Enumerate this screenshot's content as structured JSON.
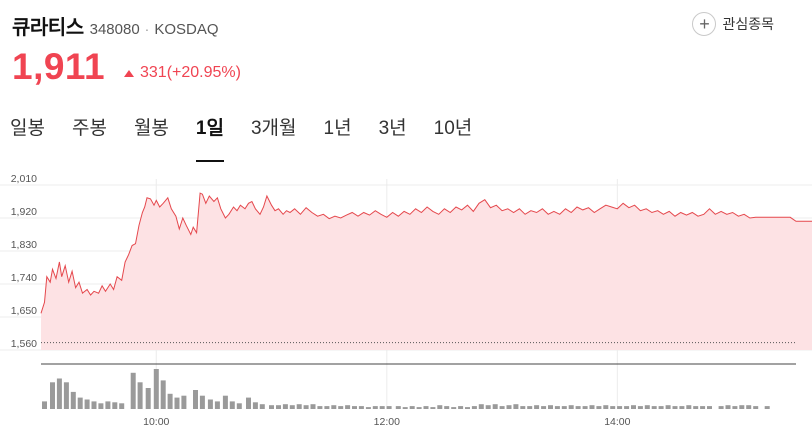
{
  "stock": {
    "name": "큐라티스",
    "code": "348080",
    "separator": "·",
    "market": "KOSDAQ",
    "price": "1,911",
    "change": "331(+20.95%)",
    "change_direction": "up",
    "color_up": "#f04452"
  },
  "favorite": {
    "label": "관심종목",
    "icon": "plus-icon"
  },
  "tabs": [
    {
      "label": "일봉",
      "active": false
    },
    {
      "label": "주봉",
      "active": false
    },
    {
      "label": "월봉",
      "active": false
    },
    {
      "label": "1일",
      "active": true
    },
    {
      "label": "3개월",
      "active": false
    },
    {
      "label": "1년",
      "active": false
    },
    {
      "label": "3년",
      "active": false
    },
    {
      "label": "10년",
      "active": false
    }
  ],
  "chart_data": {
    "type": "area",
    "y_ticks": [
      "2,010",
      "1,920",
      "1,830",
      "1,740",
      "1,650",
      "1,560"
    ],
    "ylim": [
      1560,
      2010
    ],
    "x_ticks": [
      "10:00",
      "12:00",
      "14:00"
    ],
    "reference_price": 1580,
    "grid": true,
    "line_color": "#e5484d",
    "fill_color": "#fde2e4",
    "volume_color": "#9a9a9a",
    "price_series": [
      [
        9.0,
        1660
      ],
      [
        9.03,
        1690
      ],
      [
        9.05,
        1760
      ],
      [
        9.08,
        1745
      ],
      [
        9.1,
        1780
      ],
      [
        9.13,
        1755
      ],
      [
        9.16,
        1800
      ],
      [
        9.18,
        1760
      ],
      [
        9.21,
        1790
      ],
      [
        9.24,
        1745
      ],
      [
        9.27,
        1775
      ],
      [
        9.3,
        1730
      ],
      [
        9.33,
        1745
      ],
      [
        9.36,
        1715
      ],
      [
        9.4,
        1725
      ],
      [
        9.43,
        1710
      ],
      [
        9.46,
        1720
      ],
      [
        9.5,
        1715
      ],
      [
        9.53,
        1735
      ],
      [
        9.56,
        1720
      ],
      [
        9.6,
        1740
      ],
      [
        9.63,
        1725
      ],
      [
        9.66,
        1760
      ],
      [
        9.7,
        1750
      ],
      [
        9.73,
        1800
      ],
      [
        9.76,
        1820
      ],
      [
        9.79,
        1845
      ],
      [
        9.82,
        1850
      ],
      [
        9.85,
        1900
      ],
      [
        9.88,
        1935
      ],
      [
        9.9,
        1950
      ],
      [
        9.92,
        1975
      ],
      [
        9.95,
        1972
      ],
      [
        9.98,
        1955
      ],
      [
        10.0,
        1968
      ],
      [
        10.03,
        1950
      ],
      [
        10.06,
        1960
      ],
      [
        10.1,
        1975
      ],
      [
        10.13,
        1945
      ],
      [
        10.17,
        1925
      ],
      [
        10.2,
        1890
      ],
      [
        10.23,
        1920
      ],
      [
        10.26,
        1900
      ],
      [
        10.3,
        1875
      ],
      [
        10.32,
        1895
      ],
      [
        10.35,
        1880
      ],
      [
        10.38,
        1988
      ],
      [
        10.4,
        1985
      ],
      [
        10.43,
        1960
      ],
      [
        10.46,
        1980
      ],
      [
        10.5,
        1965
      ],
      [
        10.53,
        1975
      ],
      [
        10.56,
        1945
      ],
      [
        10.6,
        1920
      ],
      [
        10.63,
        1930
      ],
      [
        10.67,
        1950
      ],
      [
        10.7,
        1940
      ],
      [
        10.73,
        1955
      ],
      [
        10.77,
        1945
      ],
      [
        10.8,
        1960
      ],
      [
        10.83,
        1965
      ],
      [
        10.86,
        1945
      ],
      [
        10.9,
        1930
      ],
      [
        10.93,
        1950
      ],
      [
        10.96,
        1980
      ],
      [
        11.0,
        1955
      ],
      [
        11.03,
        1940
      ],
      [
        11.06,
        1945
      ],
      [
        11.1,
        1930
      ],
      [
        11.13,
        1940
      ],
      [
        11.16,
        1935
      ],
      [
        11.2,
        1945
      ],
      [
        11.25,
        1930
      ],
      [
        11.3,
        1948
      ],
      [
        11.35,
        1935
      ],
      [
        11.4,
        1925
      ],
      [
        11.45,
        1930
      ],
      [
        11.5,
        1918
      ],
      [
        11.55,
        1925
      ],
      [
        11.6,
        1920
      ],
      [
        11.65,
        1928
      ],
      [
        11.7,
        1935
      ],
      [
        11.75,
        1925
      ],
      [
        11.8,
        1935
      ],
      [
        11.85,
        1928
      ],
      [
        11.9,
        1940
      ],
      [
        11.95,
        1930
      ],
      [
        12.0,
        1922
      ],
      [
        12.05,
        1935
      ],
      [
        12.1,
        1925
      ],
      [
        12.15,
        1938
      ],
      [
        12.2,
        1930
      ],
      [
        12.25,
        1945
      ],
      [
        12.3,
        1935
      ],
      [
        12.35,
        1950
      ],
      [
        12.4,
        1938
      ],
      [
        12.45,
        1930
      ],
      [
        12.5,
        1945
      ],
      [
        12.55,
        1935
      ],
      [
        12.6,
        1950
      ],
      [
        12.65,
        1942
      ],
      [
        12.7,
        1955
      ],
      [
        12.75,
        1938
      ],
      [
        12.8,
        1960
      ],
      [
        12.85,
        1970
      ],
      [
        12.9,
        1948
      ],
      [
        12.95,
        1955
      ],
      [
        13.0,
        1940
      ],
      [
        13.05,
        1945
      ],
      [
        13.1,
        1935
      ],
      [
        13.15,
        1945
      ],
      [
        13.2,
        1930
      ],
      [
        13.25,
        1940
      ],
      [
        13.3,
        1935
      ],
      [
        13.35,
        1945
      ],
      [
        13.4,
        1930
      ],
      [
        13.45,
        1938
      ],
      [
        13.5,
        1930
      ],
      [
        13.55,
        1945
      ],
      [
        13.6,
        1935
      ],
      [
        13.65,
        1950
      ],
      [
        13.7,
        1942
      ],
      [
        13.75,
        1948
      ],
      [
        13.8,
        1935
      ],
      [
        13.85,
        1945
      ],
      [
        13.9,
        1955
      ],
      [
        13.95,
        1950
      ],
      [
        14.0,
        1945
      ],
      [
        14.05,
        1960
      ],
      [
        14.1,
        1948
      ],
      [
        14.15,
        1955
      ],
      [
        14.2,
        1940
      ],
      [
        14.25,
        1945
      ],
      [
        14.3,
        1935
      ],
      [
        14.35,
        1940
      ],
      [
        14.4,
        1930
      ],
      [
        14.45,
        1938
      ],
      [
        14.5,
        1925
      ],
      [
        14.55,
        1935
      ],
      [
        14.6,
        1928
      ],
      [
        14.65,
        1935
      ],
      [
        14.7,
        1925
      ],
      [
        14.75,
        1930
      ],
      [
        14.8,
        1945
      ],
      [
        14.85,
        1930
      ],
      [
        14.9,
        1938
      ],
      [
        14.95,
        1930
      ],
      [
        15.0,
        1935
      ],
      [
        15.05,
        1925
      ],
      [
        15.1,
        1930
      ],
      [
        15.15,
        1920
      ],
      [
        15.2,
        1922
      ],
      [
        15.5,
        1922
      ],
      [
        15.55,
        1911
      ],
      [
        15.9,
        1911
      ]
    ],
    "volume_series": [
      [
        9.03,
        8
      ],
      [
        9.1,
        28
      ],
      [
        9.16,
        32
      ],
      [
        9.22,
        28
      ],
      [
        9.28,
        18
      ],
      [
        9.34,
        12
      ],
      [
        9.4,
        10
      ],
      [
        9.46,
        8
      ],
      [
        9.52,
        6
      ],
      [
        9.58,
        8
      ],
      [
        9.64,
        7
      ],
      [
        9.7,
        6
      ],
      [
        9.8,
        38
      ],
      [
        9.86,
        28
      ],
      [
        9.93,
        22
      ],
      [
        10.0,
        42
      ],
      [
        10.06,
        30
      ],
      [
        10.12,
        16
      ],
      [
        10.18,
        12
      ],
      [
        10.24,
        14
      ],
      [
        10.34,
        20
      ],
      [
        10.4,
        14
      ],
      [
        10.47,
        10
      ],
      [
        10.53,
        8
      ],
      [
        10.6,
        14
      ],
      [
        10.66,
        8
      ],
      [
        10.72,
        6
      ],
      [
        10.8,
        12
      ],
      [
        10.86,
        7
      ],
      [
        10.92,
        5
      ],
      [
        11.0,
        4
      ],
      [
        11.06,
        4
      ],
      [
        11.12,
        5
      ],
      [
        11.18,
        4
      ],
      [
        11.24,
        5
      ],
      [
        11.3,
        4
      ],
      [
        11.36,
        5
      ],
      [
        11.42,
        3
      ],
      [
        11.48,
        3
      ],
      [
        11.54,
        4
      ],
      [
        11.6,
        3
      ],
      [
        11.66,
        4
      ],
      [
        11.72,
        3
      ],
      [
        11.78,
        3
      ],
      [
        11.84,
        2
      ],
      [
        11.9,
        3
      ],
      [
        11.96,
        3
      ],
      [
        12.02,
        3
      ],
      [
        12.1,
        3
      ],
      [
        12.16,
        2
      ],
      [
        12.22,
        3
      ],
      [
        12.28,
        2
      ],
      [
        12.34,
        3
      ],
      [
        12.4,
        2
      ],
      [
        12.46,
        4
      ],
      [
        12.52,
        3
      ],
      [
        12.58,
        2
      ],
      [
        12.64,
        3
      ],
      [
        12.7,
        2
      ],
      [
        12.76,
        3
      ],
      [
        12.82,
        5
      ],
      [
        12.88,
        4
      ],
      [
        12.94,
        5
      ],
      [
        13.0,
        3
      ],
      [
        13.06,
        4
      ],
      [
        13.12,
        5
      ],
      [
        13.18,
        3
      ],
      [
        13.24,
        3
      ],
      [
        13.3,
        4
      ],
      [
        13.36,
        3
      ],
      [
        13.42,
        4
      ],
      [
        13.48,
        3
      ],
      [
        13.54,
        3
      ],
      [
        13.6,
        4
      ],
      [
        13.66,
        3
      ],
      [
        13.72,
        3
      ],
      [
        13.78,
        4
      ],
      [
        13.84,
        3
      ],
      [
        13.9,
        4
      ],
      [
        13.96,
        3
      ],
      [
        14.02,
        3
      ],
      [
        14.08,
        3
      ],
      [
        14.14,
        4
      ],
      [
        14.2,
        3
      ],
      [
        14.26,
        4
      ],
      [
        14.32,
        3
      ],
      [
        14.38,
        3
      ],
      [
        14.44,
        4
      ],
      [
        14.5,
        3
      ],
      [
        14.56,
        3
      ],
      [
        14.62,
        4
      ],
      [
        14.68,
        3
      ],
      [
        14.74,
        3
      ],
      [
        14.8,
        3
      ],
      [
        14.9,
        3
      ],
      [
        14.96,
        4
      ],
      [
        15.02,
        3
      ],
      [
        15.08,
        4
      ],
      [
        15.14,
        4
      ],
      [
        15.2,
        3
      ],
      [
        15.3,
        3
      ]
    ]
  }
}
